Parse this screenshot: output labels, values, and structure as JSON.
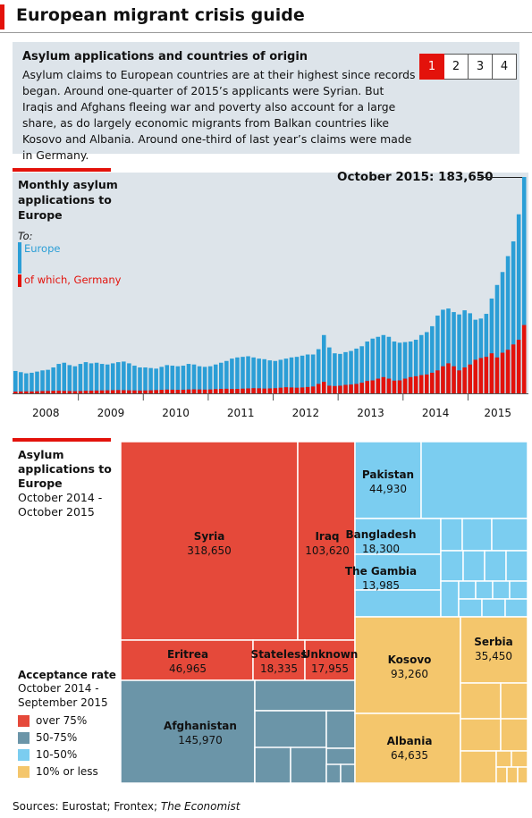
{
  "header": {
    "title": "European migrant crisis guide"
  },
  "intro": {
    "title": "Asylum applications and countries of origin",
    "body": "Asylum claims to European countries are at their highest since records began. Around one-quarter of 2015’s applicants were Syrian. But Iraqis and Afghans fleeing war and poverty also account for a large share, as do largely economic migrants from Balkan countries like Kosovo and Albania. Around one-third of last year’s claims were made in Germany.",
    "pages": [
      "1",
      "2",
      "3",
      "4"
    ],
    "active_page": "1"
  },
  "colors": {
    "europe": "#2b9ed6",
    "germany": "#e3120b",
    "over75": "#e5493a",
    "r50_75": "#6b95a8",
    "r10_50": "#7bcdf0",
    "under10": "#f4c66c"
  },
  "chart1": {
    "title": "Monthly asylum applications to Europe",
    "to_label": "To:",
    "europe_label": "Europe",
    "germany_label": "of which, Germany",
    "callout": "October 2015: 183,650"
  },
  "chart2": {
    "title": "Asylum applications to Europe",
    "subtitle": "October 2014 - October 2015",
    "legend_title": "Acceptance rate",
    "legend_sub": "October 2014 - September 2015",
    "legend_items": [
      "over 75%",
      "50-75%",
      "10-50%",
      "10% or less"
    ]
  },
  "source": {
    "prefix": "Sources: Eurostat; Frontex; ",
    "pub": "The Economist"
  },
  "chart_data": [
    {
      "type": "bar",
      "title": "Monthly asylum applications to Europe",
      "x_tick_labels": [
        "2008",
        "2009",
        "2010",
        "2011",
        "2012",
        "2013",
        "2014",
        "2015"
      ],
      "x_start": "2008-01",
      "x_end": "2015-10",
      "y_max_approx": 183650,
      "series": [
        {
          "name": "Europe",
          "values": [
            19000,
            18000,
            17000,
            17500,
            18500,
            19500,
            20000,
            22000,
            25000,
            26000,
            24000,
            23000,
            25000,
            26500,
            25500,
            26000,
            25000,
            24500,
            25500,
            26500,
            27000,
            25500,
            23500,
            22000,
            22000,
            21500,
            21000,
            22500,
            24000,
            23500,
            23000,
            23500,
            25000,
            24500,
            23000,
            22500,
            23000,
            24500,
            26000,
            27500,
            29500,
            30500,
            31000,
            31500,
            30500,
            29500,
            29000,
            28000,
            27500,
            28500,
            29500,
            30500,
            31000,
            32000,
            33000,
            33000,
            37500,
            49500,
            39000,
            34000,
            33500,
            35000,
            36000,
            38000,
            40000,
            44000,
            46500,
            48000,
            49500,
            48000,
            44000,
            43000,
            43500,
            44000,
            45500,
            49500,
            52000,
            57000,
            66000,
            71000,
            72000,
            69000,
            67000,
            70500,
            68000,
            62500,
            63500,
            67500,
            80500,
            92000,
            103000,
            116500,
            129000,
            152000,
            183650
          ]
        },
        {
          "name": "of which, Germany",
          "values": [
            1500,
            1600,
            1700,
            1600,
            1800,
            2000,
            2100,
            2200,
            2300,
            2100,
            2000,
            1900,
            2000,
            2200,
            2300,
            2400,
            2500,
            2600,
            2700,
            2800,
            2700,
            2600,
            2500,
            2400,
            2500,
            2600,
            2800,
            3000,
            3200,
            3100,
            3000,
            3100,
            3300,
            3400,
            3300,
            3200,
            3300,
            3600,
            3800,
            3900,
            3700,
            3800,
            4000,
            4200,
            4400,
            4300,
            4100,
            4200,
            4400,
            4800,
            5200,
            5000,
            4800,
            5000,
            5400,
            5800,
            8000,
            9800,
            6500,
            6200,
            6500,
            7200,
            7500,
            8000,
            9000,
            10500,
            11000,
            12500,
            13800,
            12500,
            10800,
            11000,
            12500,
            13800,
            14500,
            15500,
            16000,
            17500,
            19500,
            23000,
            25500,
            23000,
            19500,
            22000,
            24500,
            28500,
            30000,
            31000,
            34000,
            30500,
            34500,
            37000,
            41500,
            45500,
            58000
          ]
        }
      ],
      "annotations": [
        "October 2015: 183,650"
      ]
    },
    {
      "type": "treemap",
      "title": "Asylum applications to Europe",
      "subtitle": "October 2014 - October 2015",
      "legend": [
        "over 75%",
        "50-75%",
        "10-50%",
        "10% or less"
      ],
      "items": [
        {
          "name": "Syria",
          "value": 318650,
          "rate": "over 75%"
        },
        {
          "name": "Iraq",
          "value": 103620,
          "rate": "over 75%"
        },
        {
          "name": "Eritrea",
          "value": 46965,
          "rate": "over 75%"
        },
        {
          "name": "Stateless",
          "value": 18335,
          "rate": "over 75%"
        },
        {
          "name": "Unknown",
          "value": 17955,
          "rate": "over 75%"
        },
        {
          "name": "Afghanistan",
          "value": 145970,
          "rate": "50-75%"
        },
        {
          "name": "Pakistan",
          "value": 44930,
          "rate": "10-50%"
        },
        {
          "name": "Bangladesh",
          "value": 18300,
          "rate": "10-50%"
        },
        {
          "name": "The Gambia",
          "value": 13985,
          "rate": "10-50%"
        },
        {
          "name": "Kosovo",
          "value": 93260,
          "rate": "10% or less"
        },
        {
          "name": "Albania",
          "value": 64635,
          "rate": "10% or less"
        },
        {
          "name": "Serbia",
          "value": 35450,
          "rate": "10% or less"
        }
      ],
      "value_labels": {
        "Syria": "318,650",
        "Iraq": "103,620",
        "Eritrea": "46,965",
        "Stateless": "18,335",
        "Unknown": "17,955",
        "Afghanistan": "145,970",
        "Pakistan": "44,930",
        "Bangladesh": "18,300",
        "The Gambia": "13,985",
        "Kosovo": "93,260",
        "Albania": "64,635",
        "Serbia": "35,450"
      }
    }
  ]
}
